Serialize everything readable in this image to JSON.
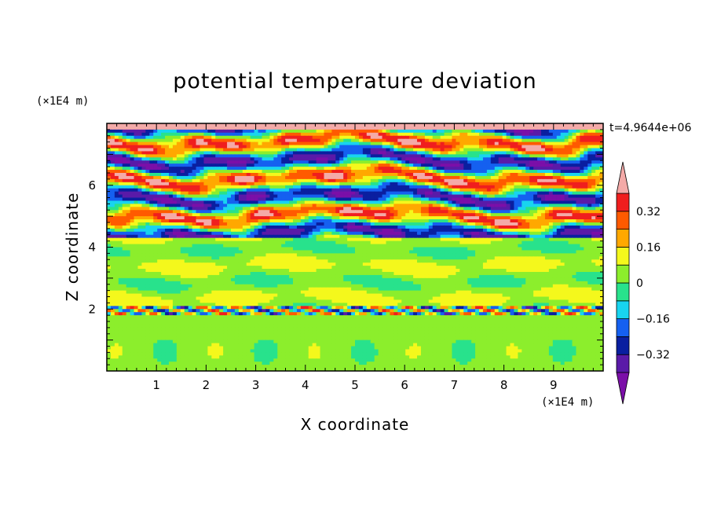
{
  "chart_data": {
    "type": "heatmap",
    "title": "potential temperature deviation",
    "xlabel": "X coordinate",
    "ylabel": "Z coordinate",
    "x_unit": "(×1E4 m)",
    "y_unit": "(×1E4 m)",
    "time_label": "t=4.9644e+06",
    "xlim": [
      0,
      10
    ],
    "ylim": [
      0,
      8
    ],
    "x_ticks": [
      1,
      2,
      3,
      4,
      5,
      6,
      7,
      8,
      9
    ],
    "y_ticks": [
      2,
      4,
      6
    ],
    "colorbar": {
      "levels": [
        -0.4,
        -0.32,
        -0.24,
        -0.16,
        -0.08,
        0,
        0.08,
        0.16,
        0.24,
        0.32,
        0.4
      ],
      "tick_values": [
        -0.32,
        -0.16,
        0,
        0.16,
        0.32
      ],
      "tick_labels": [
        "−0.32",
        "−0.16",
        "0",
        "0.16",
        "0.32"
      ],
      "colors": [
        "#7b0fa8",
        "#5a1aa8",
        "#0a1fa0",
        "#1560f0",
        "#18d4f0",
        "#28e28c",
        "#8cee2c",
        "#f4f81c",
        "#ffa800",
        "#ff5a00",
        "#f01e1e",
        "#f4aaa8"
      ],
      "extend": "both"
    }
  }
}
